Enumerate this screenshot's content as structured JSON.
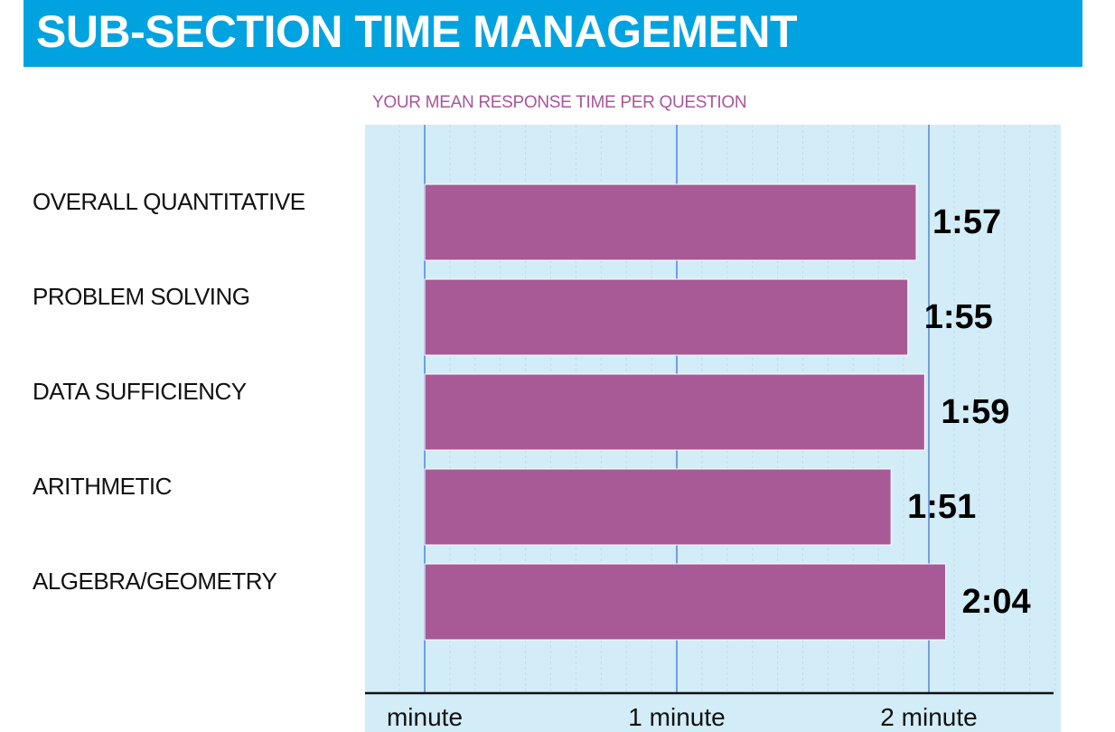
{
  "header": {
    "title": "SUB-SECTION TIME MANAGEMENT",
    "bar_color": "#00a3e0"
  },
  "chart_data": {
    "type": "bar",
    "orientation": "horizontal",
    "title": "YOUR MEAN RESPONSE TIME PER QUESTION",
    "xlabel": "",
    "ylabel": "",
    "categories": [
      "OVERALL QUANTITATIVE",
      "PROBLEM SOLVING",
      "DATA SUFFICIENCY",
      "ARITHMETIC",
      "ALGEBRA/GEOMETRY"
    ],
    "values": [
      117,
      115,
      119,
      111,
      124
    ],
    "value_labels": [
      "1:57",
      "1:55",
      "1:59",
      "1:51",
      "2:04"
    ],
    "value_unit": "seconds",
    "x_ticks": [
      0,
      60,
      120
    ],
    "x_tick_labels": [
      "minute",
      "1 minute",
      "2 minute"
    ],
    "xlim": [
      0,
      150
    ],
    "grid": true,
    "colors": {
      "bar": "#a85a96",
      "plot_background": "#d3edf8",
      "major_gridline": "#6f9ee6",
      "minor_gridline": "#c4dbe6",
      "title": "#a8569a"
    }
  }
}
